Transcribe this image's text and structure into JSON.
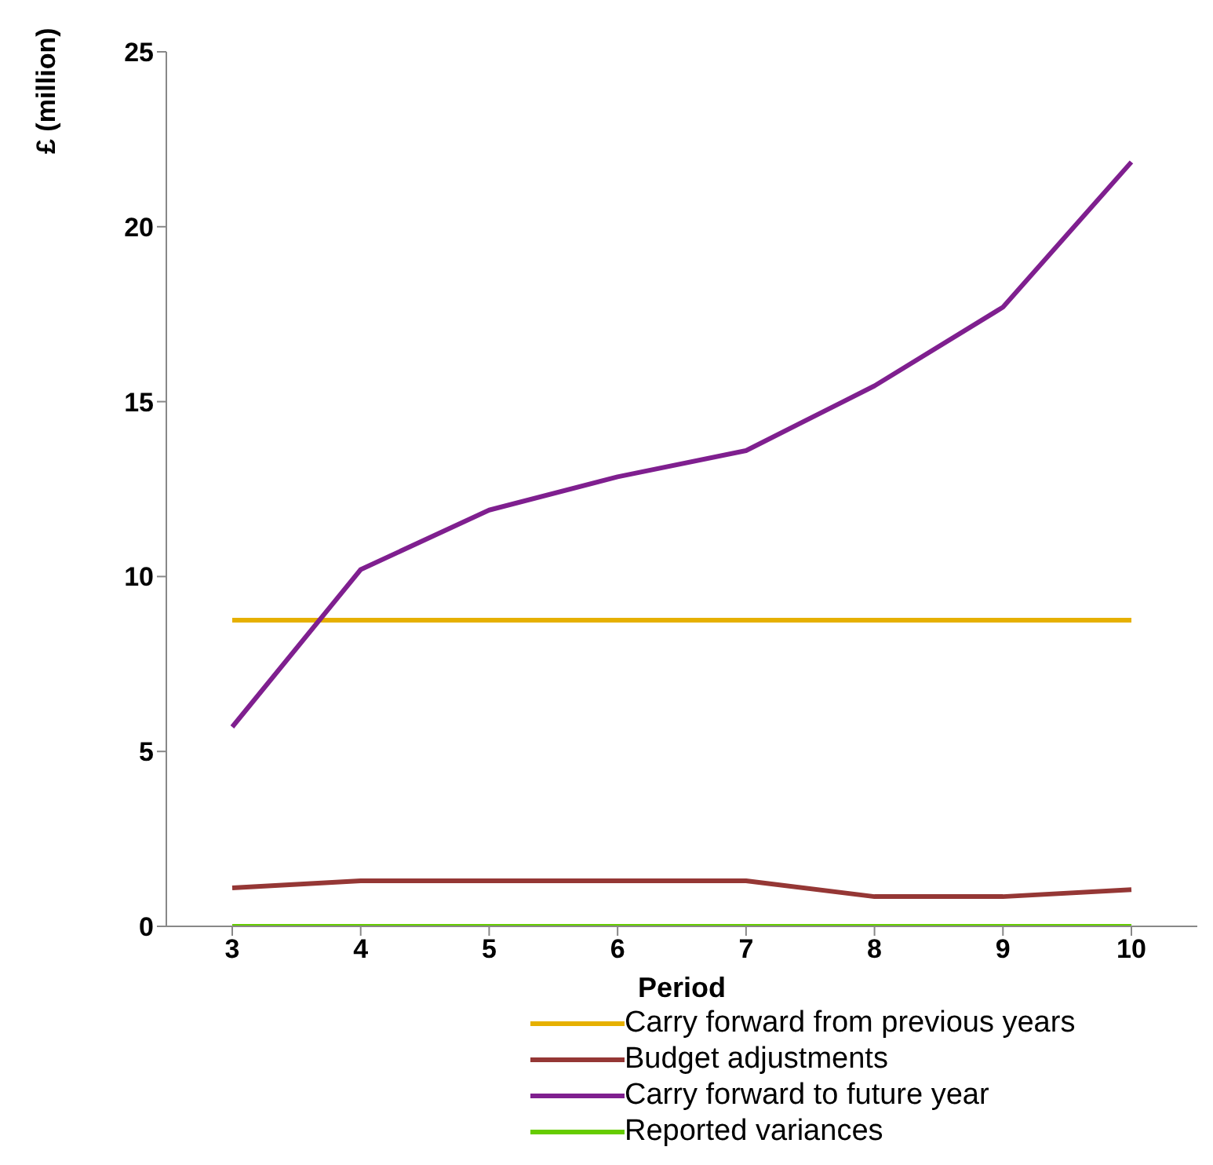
{
  "chart_data": {
    "type": "line",
    "xlabel": "Period",
    "ylabel": "£ (million)",
    "categories": [
      "3",
      "4",
      "5",
      "6",
      "7",
      "8",
      "9",
      "10"
    ],
    "series": [
      {
        "name": "Carry forward from previous years",
        "color": "#e6b000",
        "values": [
          8.75,
          8.75,
          8.75,
          8.75,
          8.75,
          8.75,
          8.75,
          8.75
        ]
      },
      {
        "name": "Budget adjustments",
        "color": "#953735",
        "values": [
          1.1,
          1.3,
          1.3,
          1.3,
          1.3,
          0.85,
          0.85,
          1.05
        ]
      },
      {
        "name": "Carry forward to future year",
        "color": "#7f1f8f",
        "values": [
          5.7,
          10.2,
          11.9,
          12.85,
          13.6,
          15.45,
          17.7,
          21.85
        ]
      },
      {
        "name": "Reported variances",
        "color": "#66cc00",
        "values": [
          0,
          0,
          0,
          0,
          0,
          0,
          0,
          0
        ]
      }
    ],
    "ylim": [
      0,
      25
    ],
    "yticks": [
      0,
      5,
      10,
      15,
      20,
      25
    ],
    "legend": "bottom",
    "marker": "none",
    "line_style": "solid"
  }
}
